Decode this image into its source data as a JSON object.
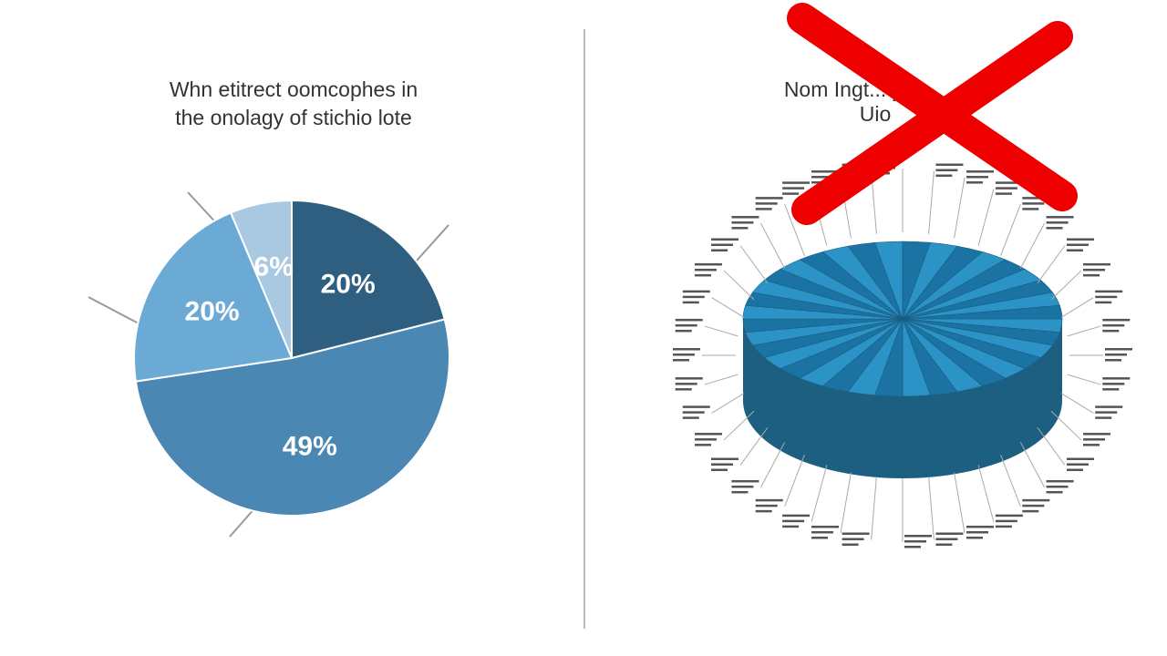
{
  "chart_data": {
    "type": "pie",
    "title": [
      "Whn etitrect oomcophes in",
      "the onolagy of stichio lote"
    ],
    "values": [
      20,
      49,
      20,
      6
    ],
    "value_labels": [
      "20%",
      "49%",
      "20%",
      "6%"
    ],
    "colors": [
      "#2e5f80",
      "#4a87b3",
      "#6caad6",
      "#a9c8e1"
    ]
  },
  "crossed_out_chart": {
    "title": [
      "Nom Ingt... y",
      "Uio"
    ]
  }
}
